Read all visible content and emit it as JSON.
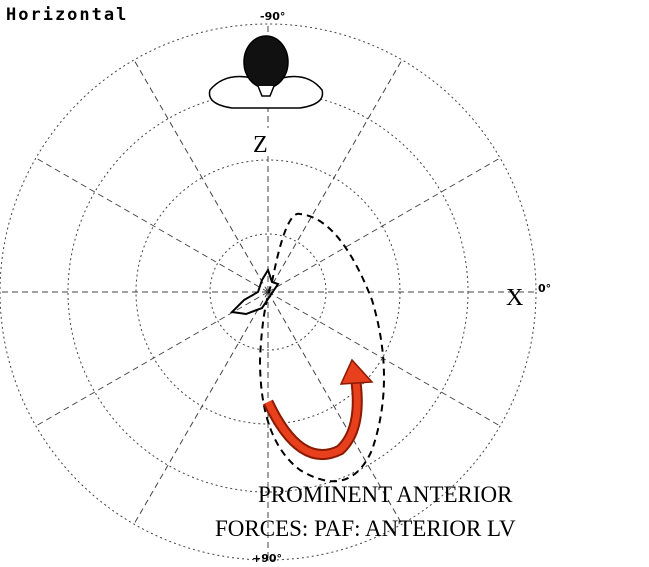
{
  "header": {
    "title": "Horizontal"
  },
  "axes": {
    "top": "-90°",
    "right": "0°",
    "bottom": "+90°",
    "z": "Z",
    "x": "X"
  },
  "annotation": {
    "lines": [
      "PROMINENT ANTERIOR",
      "FORCES: PAF: ANTERIOR LV"
    ]
  }
}
